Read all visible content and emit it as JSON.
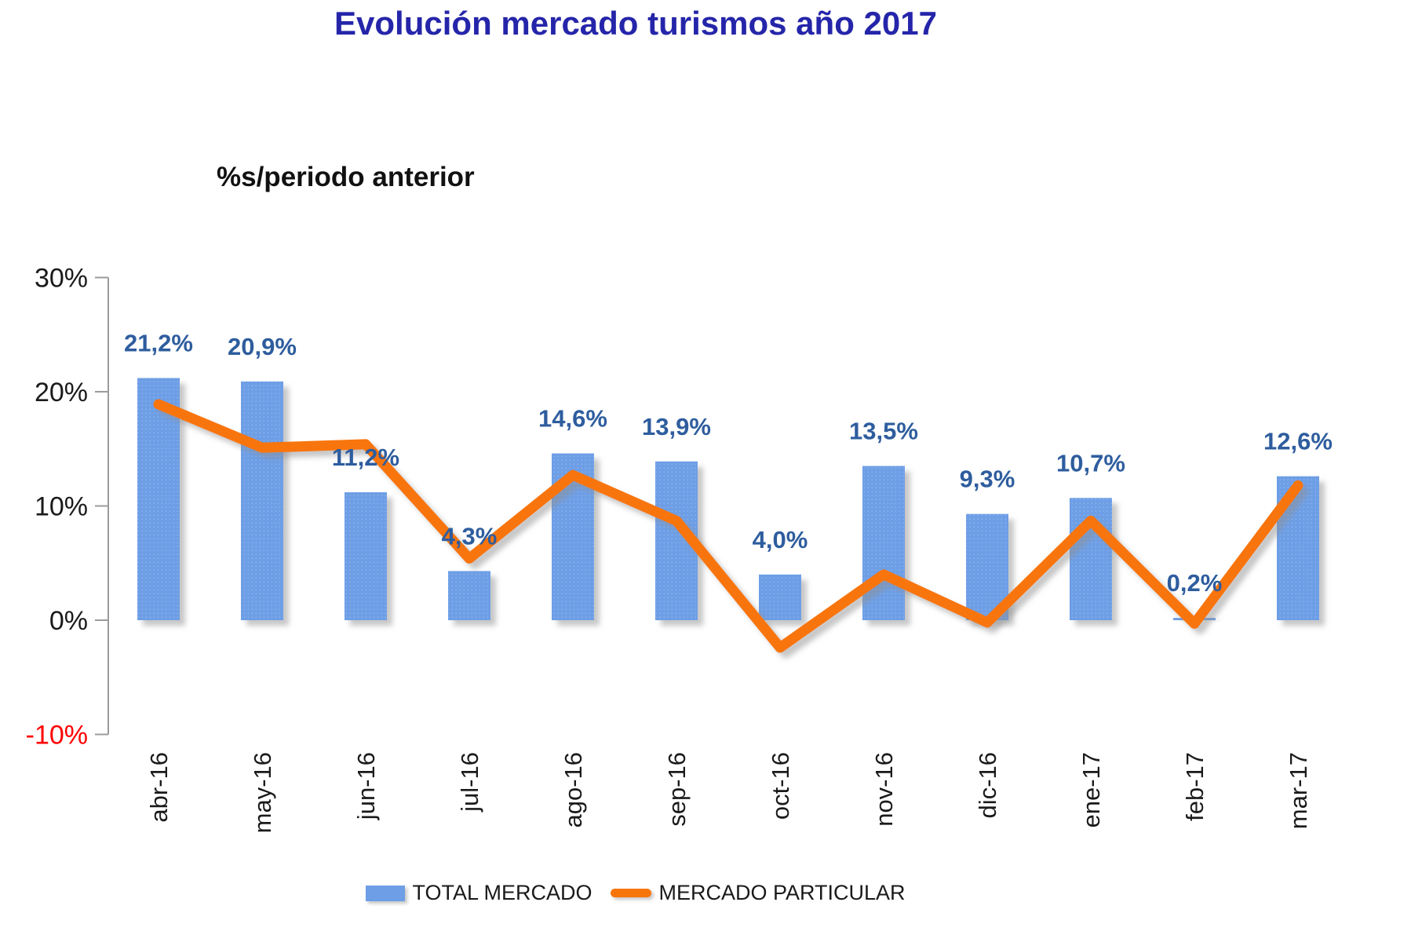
{
  "title": "Evolución mercado turismos año 2017",
  "subtitle": "%s/periodo anterior",
  "colors": {
    "title": "#2525AA",
    "subtitle": "#111111",
    "bar": "#6D9EE6",
    "line": "#F8750B",
    "value_label": "#2E5D9E",
    "tick_label": "#1A1A1A",
    "negative_tick_label": "#FF0000",
    "axis": "#9B9B9B"
  },
  "chart_data": {
    "type": "combo",
    "title": "Evolución mercado turismos año 2017",
    "subtitle_unit": "%s/periodo anterior",
    "categories": [
      "abr-16",
      "may-16",
      "jun-16",
      "jul-16",
      "ago-16",
      "sep-16",
      "oct-16",
      "nov-16",
      "dic-16",
      "ene-17",
      "feb-17",
      "mar-17"
    ],
    "series": [
      {
        "name": "TOTAL MERCADO",
        "kind": "bar",
        "color": "#6D9EE6",
        "values": [
          21.2,
          20.9,
          11.2,
          4.3,
          14.6,
          13.9,
          4.0,
          13.5,
          9.3,
          10.7,
          0.2,
          12.6
        ],
        "labels": [
          "21,2%",
          "20,9%",
          "11,2%",
          "4,3%",
          "14,6%",
          "13,9%",
          "4,0%",
          "13,5%",
          "9,3%",
          "10,7%",
          "0,2%",
          "12,6%"
        ]
      },
      {
        "name": "MERCADO PARTICULAR",
        "kind": "line",
        "color": "#F8750B",
        "values": [
          18.9,
          15.1,
          15.4,
          5.4,
          12.7,
          8.7,
          -2.4,
          4.0,
          -0.2,
          8.7,
          -0.3,
          11.8
        ]
      }
    ],
    "ylim": [
      -10,
      30
    ],
    "yticks": [
      {
        "label": "30%",
        "value": 30
      },
      {
        "label": "20%",
        "value": 20
      },
      {
        "label": "10%",
        "value": 10
      },
      {
        "label": "0%",
        "value": 0
      },
      {
        "label": "-10%",
        "value": -10
      }
    ],
    "gridlines": false,
    "legend_position": "bottom"
  },
  "legend": {
    "items": [
      {
        "label": "TOTAL MERCADO",
        "swatch": "bar"
      },
      {
        "label": "MERCADO PARTICULAR",
        "swatch": "line"
      }
    ]
  }
}
